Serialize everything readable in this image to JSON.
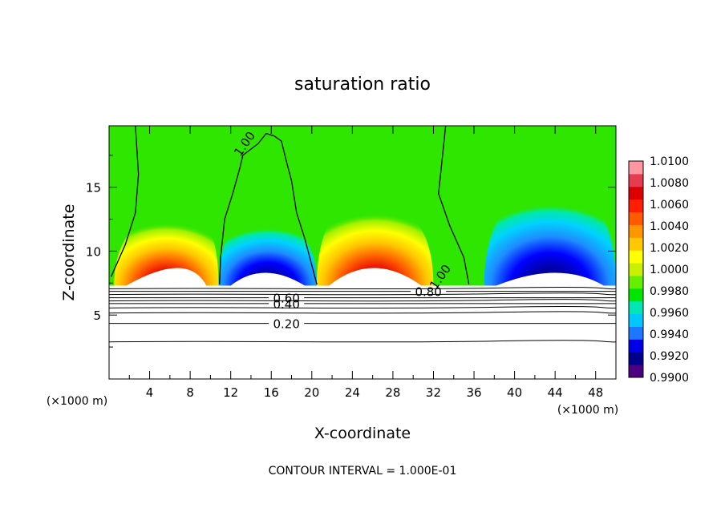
{
  "chart_data": {
    "type": "heatmap",
    "title": "saturation ratio",
    "xlabel": "X-coordinate",
    "ylabel": "Z-coordinate",
    "x_unit_left": "(×1000 m)",
    "x_unit_right": "(×1000 m)",
    "xlim": [
      0,
      50
    ],
    "ylim": [
      0,
      19.8
    ],
    "xticks": [
      4,
      8,
      12,
      16,
      20,
      24,
      28,
      32,
      36,
      40,
      44,
      48
    ],
    "yticks": [
      5,
      10,
      15
    ],
    "footer": "CONTOUR INTERVAL = 1.000E-01",
    "colorbar": {
      "labels": [
        "1.0100",
        "1.0080",
        "1.0060",
        "1.0040",
        "1.0020",
        "1.0000",
        "0.9980",
        "0.9960",
        "0.9940",
        "0.9920",
        "0.9900"
      ],
      "colors": [
        "#4b0082",
        "#00008b",
        "#0000e6",
        "#1e78ff",
        "#00c8ff",
        "#00e6b4",
        "#00e600",
        "#64f000",
        "#c8f000",
        "#ffff00",
        "#ffc800",
        "#ff9600",
        "#ff5a00",
        "#ff1e00",
        "#dc0000",
        "#e63c50",
        "#ff96a0"
      ]
    },
    "saturated_level_z": 7.3,
    "surface_contours": [
      {
        "label": "0.20",
        "z": 4.35,
        "label_x": 17.5
      },
      {
        "label": "0.40",
        "z": 5.9,
        "label_x": 17.5
      },
      {
        "label": "0.60",
        "z": 6.35,
        "label_x": 17.5
      },
      {
        "label": "0.80",
        "z": 6.85,
        "label_x": 31.5
      }
    ],
    "extra_surface_contour_z": [
      2.9,
      5.15,
      5.55,
      6.1,
      6.6,
      7.05
    ],
    "cloud_regions": [
      {
        "kind": "supersaturated",
        "x0": 0.5,
        "x1": 10.8,
        "peak_x": 7.8,
        "top_z": 13.5
      },
      {
        "kind": "subsaturated",
        "x0": 10.8,
        "x1": 20.5,
        "peak_x": 15.2,
        "top_z": 13.0
      },
      {
        "kind": "supersaturated",
        "x0": 20.5,
        "x1": 32.0,
        "peak_x": 26.0,
        "top_z": 14.5
      },
      {
        "kind": "subsaturated",
        "x0": 37.0,
        "x1": 50.0,
        "peak_x": 44.5,
        "top_z": 15.5
      }
    ],
    "contour_lines": [
      {
        "label": "1.00",
        "label_x": 13.7,
        "label_z": 18.2,
        "points": [
          [
            10.9,
            7.4
          ],
          [
            11.0,
            9.5
          ],
          [
            11.4,
            12.5
          ],
          [
            12.2,
            14.5
          ],
          [
            12.9,
            16.5
          ],
          [
            13.2,
            17.5
          ],
          [
            14.7,
            18.4
          ],
          [
            15.5,
            19.2
          ],
          [
            16.3,
            19.0
          ],
          [
            17.0,
            18.6
          ],
          [
            17.5,
            17.0
          ],
          [
            18.0,
            15.5
          ],
          [
            18.5,
            13.0
          ],
          [
            19.3,
            11.0
          ],
          [
            20.5,
            7.4
          ]
        ]
      },
      {
        "label": "",
        "label_x": null,
        "label_z": null,
        "points": [
          [
            2.6,
            19.8
          ],
          [
            2.9,
            16.0
          ],
          [
            2.6,
            13.0
          ],
          [
            1.6,
            10.5
          ],
          [
            0.2,
            8.0
          ]
        ]
      },
      {
        "label": "1.00",
        "label_x": 33.0,
        "label_z": 7.8,
        "points": [
          [
            33.2,
            19.8
          ],
          [
            32.9,
            17.5
          ],
          [
            32.5,
            14.5
          ],
          [
            33.6,
            12.0
          ],
          [
            35.0,
            9.5
          ],
          [
            35.5,
            7.4
          ]
        ]
      }
    ]
  }
}
